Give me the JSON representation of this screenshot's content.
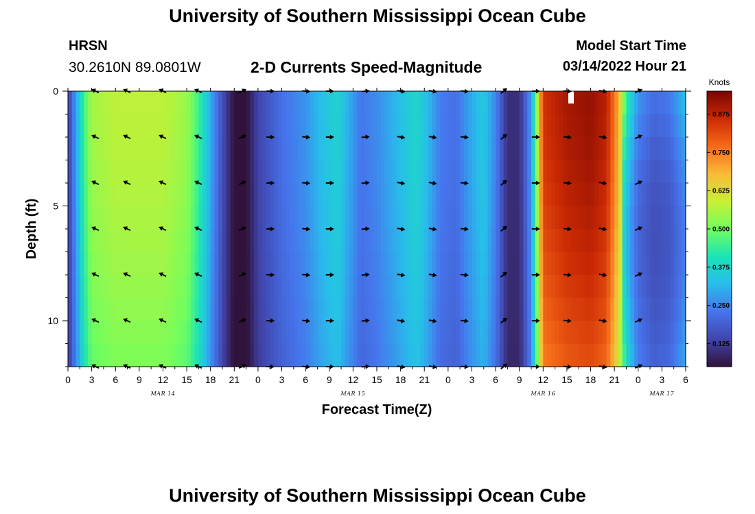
{
  "header": {
    "title": "University of Southern Mississippi Ocean Cube",
    "station": "HRSN",
    "coordinates": "30.2610N  89.0801W",
    "subtitle": "2-D Currents Speed-Magnitude",
    "model_start_label": "Model Start Time",
    "model_start_value": "03/14/2022 Hour 21",
    "footer_title": "University of Southern Mississippi Ocean Cube"
  },
  "chart_data": {
    "type": "heatmap",
    "title": "2-D Currents Speed-Magnitude",
    "xlabel": "Forecast Time(Z)",
    "ylabel": "Depth (ft)",
    "x_hours_range": [
      0,
      78
    ],
    "x_ticks": [
      "0",
      "3",
      "6",
      "9",
      "12",
      "15",
      "18",
      "21",
      "0",
      "3",
      "6",
      "9",
      "12",
      "15",
      "18",
      "21",
      "0",
      "3",
      "6",
      "9",
      "12",
      "15",
      "18",
      "21",
      "0",
      "3",
      "6"
    ],
    "day_labels": [
      {
        "label": "MAR 14",
        "hour": 12
      },
      {
        "label": "MAR 15",
        "hour": 36
      },
      {
        "label": "MAR 16",
        "hour": 60
      },
      {
        "label": "MAR 17",
        "hour": 75
      }
    ],
    "y_range_ft": [
      0,
      12
    ],
    "y_ticks": [
      0,
      5,
      10
    ],
    "colorbar": {
      "unit": "Knots",
      "min": 0.05,
      "max": 0.95,
      "ticks": [
        0.125,
        0.25,
        0.375,
        0.5,
        0.625,
        0.75,
        0.875
      ],
      "tick_labels": [
        "0.125",
        "0.250",
        "0.375",
        "0.500",
        "0.625",
        "0.750",
        "0.875"
      ]
    },
    "speed_profile_knots": [
      {
        "hour": 0,
        "speed": 0.13
      },
      {
        "hour": 1,
        "speed": 0.28
      },
      {
        "hour": 2,
        "speed": 0.45
      },
      {
        "hour": 3,
        "speed": 0.55
      },
      {
        "hour": 6,
        "speed": 0.58
      },
      {
        "hour": 12,
        "speed": 0.58
      },
      {
        "hour": 15,
        "speed": 0.54
      },
      {
        "hour": 16.5,
        "speed": 0.45
      },
      {
        "hour": 18,
        "speed": 0.3
      },
      {
        "hour": 19.5,
        "speed": 0.16
      },
      {
        "hour": 21,
        "speed": 0.05
      },
      {
        "hour": 22.5,
        "speed": 0.05
      },
      {
        "hour": 24,
        "speed": 0.14
      },
      {
        "hour": 27,
        "speed": 0.22
      },
      {
        "hour": 30,
        "speed": 0.27
      },
      {
        "hour": 32,
        "speed": 0.33
      },
      {
        "hour": 34,
        "speed": 0.37
      },
      {
        "hour": 35.5,
        "speed": 0.3
      },
      {
        "hour": 37,
        "speed": 0.23
      },
      {
        "hour": 39,
        "speed": 0.26
      },
      {
        "hour": 42,
        "speed": 0.33
      },
      {
        "hour": 44,
        "speed": 0.38
      },
      {
        "hour": 45.5,
        "speed": 0.32
      },
      {
        "hour": 47,
        "speed": 0.24
      },
      {
        "hour": 49,
        "speed": 0.22
      },
      {
        "hour": 51,
        "speed": 0.3
      },
      {
        "hour": 52.5,
        "speed": 0.35
      },
      {
        "hour": 54,
        "speed": 0.25
      },
      {
        "hour": 55.5,
        "speed": 0.1
      },
      {
        "hour": 57,
        "speed": 0.1
      },
      {
        "hour": 58.5,
        "speed": 0.28
      },
      {
        "hour": 59.5,
        "speed": 0.65
      },
      {
        "hour": 60,
        "speed": 0.85
      },
      {
        "hour": 63,
        "speed": 0.9
      },
      {
        "hour": 66,
        "speed": 0.92
      },
      {
        "hour": 68,
        "speed": 0.88
      },
      {
        "hour": 69.5,
        "speed": 0.7
      },
      {
        "hour": 70.5,
        "speed": 0.45
      },
      {
        "hour": 72,
        "speed": 0.28
      },
      {
        "hour": 74,
        "speed": 0.22
      },
      {
        "hour": 76,
        "speed": 0.24
      },
      {
        "hour": 78,
        "speed": 0.34
      }
    ],
    "arrow_hours": [
      3.5,
      7.5,
      12,
      16.5,
      22,
      25.5,
      30,
      33,
      37.5,
      42,
      46,
      50,
      55,
      59,
      63,
      67.5,
      72
    ],
    "arrow_depths_ft": [
      0,
      2,
      4,
      6,
      8,
      10,
      12
    ],
    "arrow_direction_deg_profile": [
      {
        "hour": 3.5,
        "dir": 205
      },
      {
        "hour": 7.5,
        "dir": 205
      },
      {
        "hour": 12,
        "dir": 205
      },
      {
        "hour": 16.5,
        "dir": 205
      },
      {
        "hour": 22,
        "dir": 335
      },
      {
        "hour": 25.5,
        "dir": 0
      },
      {
        "hour": 30,
        "dir": 5
      },
      {
        "hour": 33,
        "dir": 0
      },
      {
        "hour": 37.5,
        "dir": 355
      },
      {
        "hour": 42,
        "dir": 10
      },
      {
        "hour": 46,
        "dir": 10
      },
      {
        "hour": 50,
        "dir": 5
      },
      {
        "hour": 55,
        "dir": 320
      },
      {
        "hour": 59,
        "dir": 0
      },
      {
        "hour": 63,
        "dir": 5
      },
      {
        "hour": 67.5,
        "dir": 10
      },
      {
        "hour": 72,
        "dir": 335
      }
    ]
  }
}
